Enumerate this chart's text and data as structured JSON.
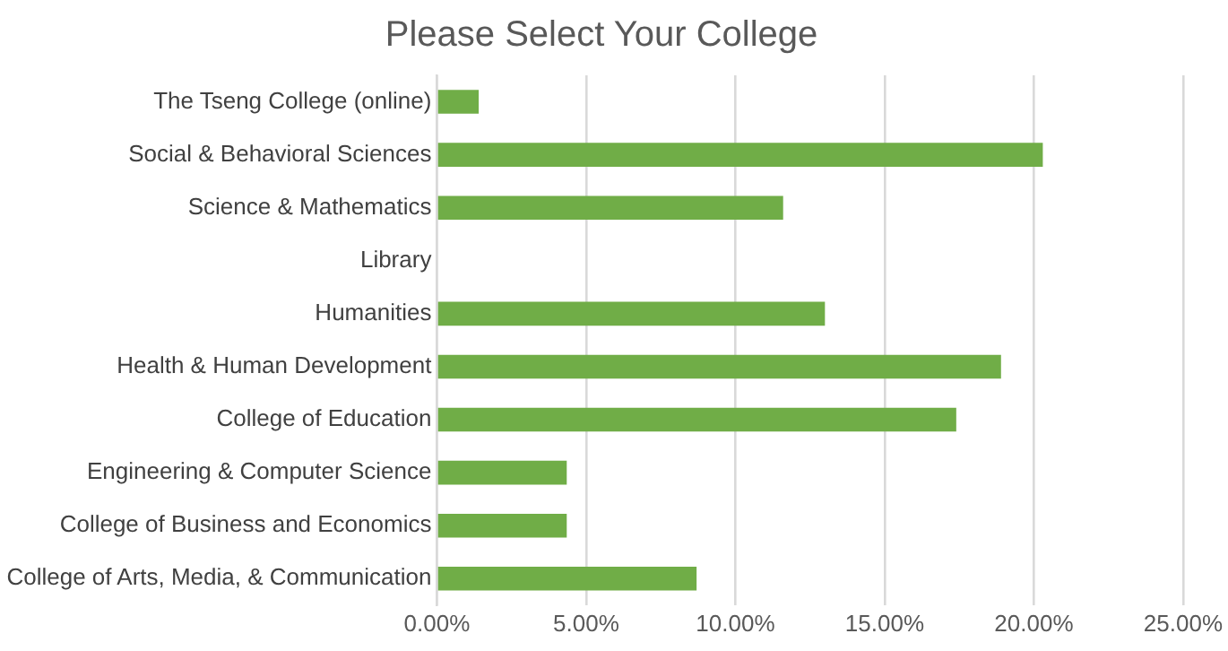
{
  "chart_data": {
    "type": "bar",
    "orientation": "horizontal",
    "title": "Please Select Your College",
    "categories": [
      "The Tseng College (online)",
      "Social & Behavioral Sciences",
      "Science & Mathematics",
      "Library",
      "Humanities",
      "Health & Human Development",
      "College of Education",
      "Engineering & Computer Science",
      "College of Business and Economics",
      "College of Arts, Media, & Communication"
    ],
    "values": [
      1.4,
      20.3,
      11.6,
      0,
      13.0,
      18.9,
      17.4,
      4.35,
      4.35,
      8.7
    ],
    "color": "#70ad47",
    "xlim": [
      0,
      25
    ],
    "xticks": [
      {
        "value": 0,
        "label": "0.00%"
      },
      {
        "value": 5,
        "label": "5.00%"
      },
      {
        "value": 10,
        "label": "10.00%"
      },
      {
        "value": 15,
        "label": "15.00%"
      },
      {
        "value": 20,
        "label": "20.00%"
      },
      {
        "value": 25,
        "label": "25.00%"
      }
    ],
    "grid": "x",
    "legend": false
  }
}
